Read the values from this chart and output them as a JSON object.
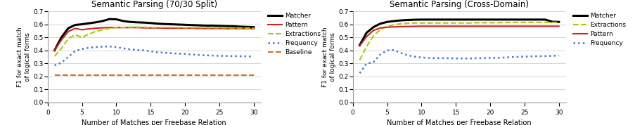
{
  "left": {
    "title": "Semantic Parsing (70/30 Split)",
    "xlabel": "Number of Matches per Freebase Relation",
    "ylabel": "F1 for exact match\nof logical forms",
    "xlim": [
      0,
      31
    ],
    "ylim": [
      0,
      0.7
    ],
    "yticks": [
      0,
      0.1,
      0.2,
      0.3,
      0.4,
      0.5,
      0.6,
      0.7
    ],
    "xticks": [
      0,
      5,
      10,
      15,
      20,
      25,
      30
    ],
    "series": {
      "Matcher": {
        "color": "#000000",
        "style": "-",
        "linewidth": 2.2,
        "x": [
          1,
          2,
          3,
          4,
          5,
          6,
          7,
          8,
          9,
          10,
          11,
          12,
          13,
          14,
          15,
          16,
          17,
          18,
          19,
          20,
          21,
          22,
          23,
          24,
          25,
          26,
          27,
          28,
          29,
          30
        ],
        "y": [
          0.4,
          0.5,
          0.57,
          0.595,
          0.6,
          0.608,
          0.615,
          0.625,
          0.64,
          0.638,
          0.625,
          0.618,
          0.615,
          0.613,
          0.61,
          0.605,
          0.602,
          0.6,
          0.598,
          0.596,
          0.594,
          0.592,
          0.59,
          0.59,
          0.588,
          0.586,
          0.585,
          0.582,
          0.58,
          0.578
        ]
      },
      "Pattern": {
        "color": "#cc2222",
        "style": "-",
        "linewidth": 1.5,
        "x": [
          1,
          2,
          3,
          4,
          5,
          6,
          7,
          8,
          9,
          10,
          11,
          12,
          13,
          14,
          15,
          16,
          17,
          18,
          19,
          20,
          21,
          22,
          23,
          24,
          25,
          26,
          27,
          28,
          29,
          30
        ],
        "y": [
          0.4,
          0.48,
          0.545,
          0.568,
          0.558,
          0.565,
          0.57,
          0.573,
          0.575,
          0.575,
          0.575,
          0.575,
          0.575,
          0.573,
          0.572,
          0.572,
          0.57,
          0.57,
          0.57,
          0.57,
          0.57,
          0.568,
          0.568,
          0.568,
          0.568,
          0.567,
          0.567,
          0.567,
          0.567,
          0.567
        ]
      },
      "Extractions": {
        "color": "#aacc00",
        "style": "--",
        "linewidth": 1.5,
        "x": [
          1,
          2,
          3,
          4,
          5,
          6,
          7,
          8,
          9,
          10,
          11,
          12,
          13,
          14,
          15,
          16,
          17,
          18,
          19,
          20,
          21,
          22,
          23,
          24,
          25,
          26,
          27,
          28,
          29,
          30
        ],
        "y": [
          0.355,
          0.415,
          0.49,
          0.52,
          0.5,
          0.525,
          0.545,
          0.558,
          0.568,
          0.575,
          0.576,
          0.578,
          0.578,
          0.578,
          0.575,
          0.575,
          0.576,
          0.576,
          0.575,
          0.574,
          0.574,
          0.574,
          0.574,
          0.574,
          0.573,
          0.573,
          0.572,
          0.572,
          0.571,
          0.571
        ]
      },
      "Frequency": {
        "color": "#4477dd",
        "style": ":",
        "linewidth": 1.8,
        "x": [
          1,
          2,
          3,
          4,
          5,
          6,
          7,
          8,
          9,
          10,
          11,
          12,
          13,
          14,
          15,
          16,
          17,
          18,
          19,
          20,
          21,
          22,
          23,
          24,
          25,
          26,
          27,
          28,
          29,
          30
        ],
        "y": [
          0.285,
          0.305,
          0.35,
          0.395,
          0.41,
          0.42,
          0.425,
          0.428,
          0.43,
          0.425,
          0.415,
          0.408,
          0.402,
          0.4,
          0.393,
          0.385,
          0.382,
          0.378,
          0.375,
          0.372,
          0.368,
          0.365,
          0.362,
          0.36,
          0.358,
          0.357,
          0.356,
          0.355,
          0.354,
          0.353
        ]
      },
      "Baseline": {
        "color": "#cc7722",
        "style": "--",
        "linewidth": 1.5,
        "x": [
          1,
          2,
          3,
          4,
          5,
          6,
          7,
          8,
          9,
          10,
          11,
          12,
          13,
          14,
          15,
          16,
          17,
          18,
          19,
          20,
          21,
          22,
          23,
          24,
          25,
          26,
          27,
          28,
          29,
          30
        ],
        "y": [
          0.21,
          0.21,
          0.21,
          0.21,
          0.21,
          0.21,
          0.21,
          0.21,
          0.21,
          0.21,
          0.21,
          0.21,
          0.21,
          0.21,
          0.21,
          0.21,
          0.21,
          0.21,
          0.21,
          0.21,
          0.21,
          0.21,
          0.21,
          0.21,
          0.21,
          0.21,
          0.21,
          0.21,
          0.21,
          0.21
        ]
      }
    },
    "legend_order": [
      "Matcher",
      "Pattern",
      "Extractions",
      "Frequency",
      "Baseline"
    ]
  },
  "right": {
    "title": "Semantic Parsing (Cross-Domain)",
    "xlabel": "Number of Matches per Freebase Relation",
    "ylabel": "F1 for exact match\nof logical forms",
    "xlim": [
      0,
      31
    ],
    "ylim": [
      0,
      0.7
    ],
    "yticks": [
      0,
      0.1,
      0.2,
      0.3,
      0.4,
      0.5,
      0.6,
      0.7
    ],
    "xticks": [
      0,
      5,
      10,
      15,
      20,
      25,
      30
    ],
    "series": {
      "Matcher": {
        "color": "#000000",
        "style": "-",
        "linewidth": 2.2,
        "x": [
          1,
          2,
          3,
          4,
          5,
          6,
          7,
          8,
          9,
          10,
          11,
          12,
          13,
          14,
          15,
          16,
          17,
          18,
          19,
          20,
          21,
          22,
          23,
          24,
          25,
          26,
          27,
          28,
          29,
          30
        ],
        "y": [
          0.44,
          0.535,
          0.578,
          0.605,
          0.618,
          0.625,
          0.63,
          0.633,
          0.635,
          0.636,
          0.636,
          0.636,
          0.636,
          0.636,
          0.636,
          0.636,
          0.636,
          0.636,
          0.636,
          0.636,
          0.636,
          0.636,
          0.636,
          0.636,
          0.636,
          0.636,
          0.636,
          0.636,
          0.62,
          0.618
        ]
      },
      "Extractions": {
        "color": "#aacc00",
        "style": "--",
        "linewidth": 1.5,
        "x": [
          1,
          2,
          3,
          4,
          5,
          6,
          7,
          8,
          9,
          10,
          11,
          12,
          13,
          14,
          15,
          16,
          17,
          18,
          19,
          20,
          21,
          22,
          23,
          24,
          25,
          26,
          27,
          28,
          29,
          30
        ],
        "y": [
          0.325,
          0.43,
          0.51,
          0.56,
          0.583,
          0.597,
          0.604,
          0.608,
          0.61,
          0.61,
          0.61,
          0.61,
          0.61,
          0.61,
          0.61,
          0.61,
          0.61,
          0.612,
          0.612,
          0.612,
          0.612,
          0.614,
          0.614,
          0.615,
          0.615,
          0.615,
          0.615,
          0.615,
          0.615,
          0.615
        ]
      },
      "Pattern": {
        "color": "#cc2222",
        "style": "-",
        "linewidth": 1.5,
        "x": [
          1,
          2,
          3,
          4,
          5,
          6,
          7,
          8,
          9,
          10,
          11,
          12,
          13,
          14,
          15,
          16,
          17,
          18,
          19,
          20,
          21,
          22,
          23,
          24,
          25,
          26,
          27,
          28,
          29,
          30
        ],
        "y": [
          0.435,
          0.505,
          0.553,
          0.572,
          0.578,
          0.58,
          0.582,
          0.583,
          0.584,
          0.585,
          0.585,
          0.585,
          0.585,
          0.585,
          0.585,
          0.585,
          0.585,
          0.585,
          0.585,
          0.585,
          0.585,
          0.585,
          0.585,
          0.585,
          0.585,
          0.585,
          0.585,
          0.585,
          0.585,
          0.585
        ]
      },
      "Frequency": {
        "color": "#4477dd",
        "style": ":",
        "linewidth": 1.8,
        "x": [
          1,
          2,
          3,
          4,
          5,
          6,
          7,
          8,
          9,
          10,
          11,
          12,
          13,
          14,
          15,
          16,
          17,
          18,
          19,
          20,
          21,
          22,
          23,
          24,
          25,
          26,
          27,
          28,
          29,
          30
        ],
        "y": [
          0.225,
          0.298,
          0.31,
          0.368,
          0.4,
          0.402,
          0.38,
          0.362,
          0.352,
          0.345,
          0.342,
          0.34,
          0.34,
          0.34,
          0.338,
          0.338,
          0.338,
          0.34,
          0.34,
          0.342,
          0.342,
          0.345,
          0.348,
          0.35,
          0.352,
          0.354,
          0.355,
          0.356,
          0.358,
          0.36
        ]
      }
    },
    "legend_order": [
      "Matcher",
      "Extractions",
      "Pattern",
      "Frequency"
    ]
  }
}
